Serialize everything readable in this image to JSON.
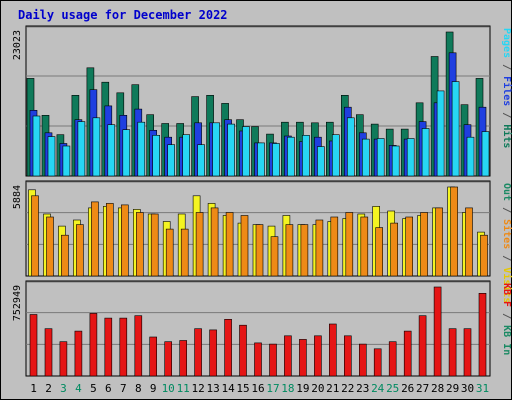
{
  "chart_data": {
    "title": "Daily usage for December 2022",
    "days": [
      "1",
      "2",
      "3",
      "4",
      "5",
      "6",
      "7",
      "8",
      "9",
      "10",
      "11",
      "12",
      "13",
      "14",
      "15",
      "16",
      "17",
      "18",
      "19",
      "20",
      "21",
      "22",
      "23",
      "24",
      "25",
      "26",
      "27",
      "28",
      "29",
      "30",
      "31"
    ],
    "weekend_days": [
      "3",
      "4",
      "10",
      "11",
      "17",
      "18",
      "24",
      "25",
      "31"
    ],
    "colors": {
      "title": "#0000cc",
      "day_label": "#000000",
      "weekend_label": "#008a60",
      "hits": "#0f7a5a",
      "files": "#1f3fe0",
      "pages": "#27d6f4",
      "visits": "#f4f422",
      "sites": "#ee8a16",
      "kbf": "#e51515",
      "kbin": "#1b8a64",
      "kbout": "#1b8a64",
      "axis_label": "#000000",
      "legend_sep": "#555555"
    },
    "panels": [
      {
        "type": "bar",
        "max_label": "23023",
        "legend": [
          {
            "text": "Hits",
            "color": "#0f7a5a"
          },
          {
            "text": "Files",
            "color": "#1f3fe0"
          },
          {
            "text": "Pages",
            "color": "#27d6f4"
          }
        ],
        "series": [
          {
            "key": "hits",
            "values": [
              15600,
              9700,
              6600,
              12900,
              17300,
              15000,
              13300,
              14600,
              9800,
              8400,
              8400,
              12700,
              12900,
              11600,
              9000,
              7900,
              6700,
              8600,
              8600,
              8500,
              8600,
              12900,
              9800,
              8300,
              7500,
              7500,
              11700,
              19100,
              23023,
              11400,
              15600
            ]
          },
          {
            "key": "files",
            "values": [
              10500,
              6900,
              5200,
              9000,
              13800,
              11200,
              9700,
              10700,
              7300,
              6200,
              6200,
              8500,
              8500,
              9000,
              7200,
              5300,
              5300,
              6400,
              5500,
              6200,
              5600,
              11000,
              6900,
              5900,
              4900,
              5900,
              8700,
              11700,
              19700,
              8200,
              11000
            ]
          },
          {
            "key": "pages",
            "values": [
              9600,
              6300,
              4800,
              8700,
              9300,
              8200,
              7400,
              8600,
              6500,
              5000,
              6600,
              5000,
              8500,
              8300,
              7900,
              5300,
              5200,
              6200,
              6500,
              4700,
              6600,
              9300,
              5900,
              6000,
              4800,
              6000,
              7600,
              13600,
              15100,
              6200,
              7100
            ]
          }
        ]
      },
      {
        "type": "bar",
        "max_label": "5884",
        "legend": [
          {
            "text": "Visits",
            "color": "#e6c800"
          },
          {
            "text": "Sites",
            "color": "#ee8a16"
          },
          {
            "text": "Out",
            "color": "#1b8a64"
          }
        ],
        "series": [
          {
            "key": "visits",
            "values": [
              5700,
              4100,
              3300,
              3700,
              4500,
              4600,
              4500,
              4400,
              4100,
              3600,
              4100,
              5300,
              4800,
              4000,
              3500,
              3400,
              3300,
              4000,
              3400,
              3400,
              3600,
              3800,
              4100,
              4600,
              4300,
              3800,
              4000,
              4500,
              5884,
              4200,
              2900
            ]
          },
          {
            "key": "sites",
            "values": [
              5300,
              3900,
              2700,
              3400,
              4900,
              4800,
              4700,
              4200,
              4100,
              3100,
              3100,
              4200,
              4500,
              4200,
              4000,
              3400,
              2600,
              3400,
              3400,
              3700,
              3900,
              4200,
              3900,
              3200,
              3500,
              3900,
              4200,
              4500,
              5884,
              4500,
              2700
            ]
          }
        ]
      },
      {
        "type": "bar",
        "max_label": "752949",
        "legend": [
          {
            "text": "KB In",
            "color": "#1b8a64"
          },
          {
            "text": "KB F",
            "color": "#e51515"
          }
        ],
        "series": [
          {
            "key": "kbf",
            "values": [
              520000,
              400000,
              290000,
              380000,
              530000,
              490000,
              490000,
              510000,
              330000,
              290000,
              300000,
              400000,
              390000,
              480000,
              430000,
              280000,
              270000,
              340000,
              310000,
              340000,
              440000,
              340000,
              270000,
              230000,
              290000,
              380000,
              510000,
              752949,
              400000,
              400000,
              700000
            ]
          }
        ]
      }
    ]
  }
}
